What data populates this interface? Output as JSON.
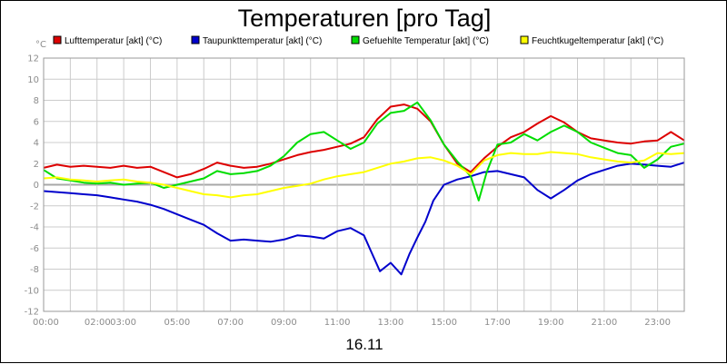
{
  "chart_data": {
    "type": "line",
    "title": "Temperaturen [pro Tag]",
    "unit_label": "°C",
    "date_label": "16.11",
    "ylim": [
      -12,
      12
    ],
    "yticks": [
      12,
      10,
      8,
      6,
      4,
      2,
      0,
      -2,
      -4,
      -6,
      -8,
      -10,
      -12
    ],
    "xlim": [
      0,
      24
    ],
    "xtick_labels": [
      {
        "x": 0,
        "label": "00:00"
      },
      {
        "x": 2,
        "label": "02:00"
      },
      {
        "x": 3,
        "label": "03:00"
      },
      {
        "x": 5,
        "label": "05:00"
      },
      {
        "x": 7,
        "label": "07:00"
      },
      {
        "x": 9,
        "label": "09:00"
      },
      {
        "x": 11,
        "label": "11:00"
      },
      {
        "x": 13,
        "label": "13:00"
      },
      {
        "x": 15,
        "label": "15:00"
      },
      {
        "x": 17,
        "label": "17:00"
      },
      {
        "x": 19,
        "label": "19:00"
      },
      {
        "x": 21,
        "label": "21:00"
      },
      {
        "x": 23,
        "label": "23:00"
      }
    ],
    "grid": true,
    "legend_position": "top",
    "x_unit": "hour of day",
    "series": [
      {
        "name": "Lufttemperatur [akt] (°C)",
        "color": "#dd0000",
        "points": [
          [
            0,
            1.6
          ],
          [
            0.5,
            1.9
          ],
          [
            1,
            1.7
          ],
          [
            1.5,
            1.8
          ],
          [
            2,
            1.7
          ],
          [
            2.5,
            1.6
          ],
          [
            3,
            1.8
          ],
          [
            3.5,
            1.6
          ],
          [
            4,
            1.7
          ],
          [
            4.5,
            1.2
          ],
          [
            5,
            0.7
          ],
          [
            5.5,
            1.0
          ],
          [
            6,
            1.5
          ],
          [
            6.5,
            2.1
          ],
          [
            7,
            1.8
          ],
          [
            7.5,
            1.6
          ],
          [
            8,
            1.7
          ],
          [
            8.5,
            2.0
          ],
          [
            9,
            2.4
          ],
          [
            9.5,
            2.8
          ],
          [
            10,
            3.1
          ],
          [
            10.5,
            3.3
          ],
          [
            11,
            3.6
          ],
          [
            11.5,
            3.9
          ],
          [
            12,
            4.5
          ],
          [
            12.5,
            6.2
          ],
          [
            13,
            7.4
          ],
          [
            13.5,
            7.6
          ],
          [
            14,
            7.2
          ],
          [
            14.5,
            6.0
          ],
          [
            15,
            3.8
          ],
          [
            15.5,
            2.0
          ],
          [
            16,
            1.2
          ],
          [
            16.5,
            2.5
          ],
          [
            17,
            3.6
          ],
          [
            17.5,
            4.5
          ],
          [
            18,
            5.0
          ],
          [
            18.5,
            5.8
          ],
          [
            19,
            6.5
          ],
          [
            19.5,
            5.9
          ],
          [
            20,
            5.0
          ],
          [
            20.5,
            4.4
          ],
          [
            21,
            4.2
          ],
          [
            21.5,
            4.0
          ],
          [
            22,
            3.9
          ],
          [
            22.5,
            4.1
          ],
          [
            23,
            4.2
          ],
          [
            23.5,
            5.0
          ],
          [
            24,
            4.2
          ]
        ]
      },
      {
        "name": "Taupunkttemperatur [akt] (°C)",
        "color": "#0000cc",
        "points": [
          [
            0,
            -0.6
          ],
          [
            0.5,
            -0.7
          ],
          [
            1,
            -0.8
          ],
          [
            1.5,
            -0.9
          ],
          [
            2,
            -1.0
          ],
          [
            2.5,
            -1.2
          ],
          [
            3,
            -1.4
          ],
          [
            3.5,
            -1.6
          ],
          [
            4,
            -1.9
          ],
          [
            4.5,
            -2.3
          ],
          [
            5,
            -2.8
          ],
          [
            5.5,
            -3.3
          ],
          [
            6,
            -3.8
          ],
          [
            6.5,
            -4.6
          ],
          [
            7,
            -5.3
          ],
          [
            7.5,
            -5.2
          ],
          [
            8,
            -5.3
          ],
          [
            8.5,
            -5.4
          ],
          [
            9,
            -5.2
          ],
          [
            9.5,
            -4.8
          ],
          [
            10,
            -4.9
          ],
          [
            10.5,
            -5.1
          ],
          [
            11,
            -4.4
          ],
          [
            11.5,
            -4.1
          ],
          [
            12,
            -4.8
          ],
          [
            12.3,
            -6.5
          ],
          [
            12.6,
            -8.2
          ],
          [
            13,
            -7.4
          ],
          [
            13.4,
            -8.5
          ],
          [
            13.7,
            -6.6
          ],
          [
            14,
            -5.0
          ],
          [
            14.3,
            -3.5
          ],
          [
            14.6,
            -1.5
          ],
          [
            15,
            0.0
          ],
          [
            15.5,
            0.5
          ],
          [
            16,
            0.8
          ],
          [
            16.5,
            1.2
          ],
          [
            17,
            1.3
          ],
          [
            17.5,
            1.0
          ],
          [
            18,
            0.7
          ],
          [
            18.5,
            -0.5
          ],
          [
            19,
            -1.3
          ],
          [
            19.5,
            -0.5
          ],
          [
            20,
            0.4
          ],
          [
            20.5,
            1.0
          ],
          [
            21,
            1.4
          ],
          [
            21.5,
            1.8
          ],
          [
            22,
            2.0
          ],
          [
            22.5,
            1.9
          ],
          [
            23,
            1.8
          ],
          [
            23.5,
            1.7
          ],
          [
            24,
            2.1
          ]
        ]
      },
      {
        "name": "Gefuehlte Temperatur [akt] (°C)",
        "color": "#00dd00",
        "points": [
          [
            0,
            1.4
          ],
          [
            0.5,
            0.6
          ],
          [
            1,
            0.4
          ],
          [
            1.5,
            0.2
          ],
          [
            2,
            0.1
          ],
          [
            2.5,
            0.2
          ],
          [
            3,
            0.0
          ],
          [
            3.5,
            0.1
          ],
          [
            4,
            0.2
          ],
          [
            4.5,
            -0.3
          ],
          [
            5,
            0.0
          ],
          [
            5.5,
            0.3
          ],
          [
            6,
            0.6
          ],
          [
            6.5,
            1.3
          ],
          [
            7,
            1.0
          ],
          [
            7.5,
            1.1
          ],
          [
            8,
            1.3
          ],
          [
            8.5,
            1.8
          ],
          [
            9,
            2.7
          ],
          [
            9.5,
            4.0
          ],
          [
            10,
            4.8
          ],
          [
            10.5,
            5.0
          ],
          [
            11,
            4.2
          ],
          [
            11.5,
            3.4
          ],
          [
            12,
            4.0
          ],
          [
            12.5,
            5.8
          ],
          [
            13,
            6.8
          ],
          [
            13.5,
            7.0
          ],
          [
            14,
            7.8
          ],
          [
            14.5,
            6.1
          ],
          [
            15,
            3.8
          ],
          [
            15.5,
            2.2
          ],
          [
            16,
            0.8
          ],
          [
            16.3,
            -1.5
          ],
          [
            16.6,
            1.2
          ],
          [
            17,
            3.8
          ],
          [
            17.5,
            4.0
          ],
          [
            18,
            4.8
          ],
          [
            18.5,
            4.2
          ],
          [
            19,
            5.0
          ],
          [
            19.5,
            5.6
          ],
          [
            20,
            5.0
          ],
          [
            20.5,
            4.0
          ],
          [
            21,
            3.5
          ],
          [
            21.5,
            3.0
          ],
          [
            22,
            2.8
          ],
          [
            22.5,
            1.6
          ],
          [
            23,
            2.4
          ],
          [
            23.5,
            3.6
          ],
          [
            24,
            3.9
          ]
        ]
      },
      {
        "name": "Feuchtkugeltemperatur [akt] (°C)",
        "color": "#ffff00",
        "points": [
          [
            0,
            0.6
          ],
          [
            0.5,
            0.7
          ],
          [
            1,
            0.5
          ],
          [
            1.5,
            0.4
          ],
          [
            2,
            0.3
          ],
          [
            2.5,
            0.4
          ],
          [
            3,
            0.5
          ],
          [
            3.5,
            0.3
          ],
          [
            4,
            0.2
          ],
          [
            4.5,
            0.0
          ],
          [
            5,
            -0.3
          ],
          [
            5.5,
            -0.6
          ],
          [
            6,
            -0.9
          ],
          [
            6.5,
            -1.0
          ],
          [
            7,
            -1.2
          ],
          [
            7.5,
            -1.0
          ],
          [
            8,
            -0.9
          ],
          [
            8.5,
            -0.6
          ],
          [
            9,
            -0.3
          ],
          [
            9.5,
            -0.1
          ],
          [
            10,
            0.1
          ],
          [
            10.5,
            0.5
          ],
          [
            11,
            0.8
          ],
          [
            11.5,
            1.0
          ],
          [
            12,
            1.2
          ],
          [
            12.5,
            1.6
          ],
          [
            13,
            2.0
          ],
          [
            13.5,
            2.2
          ],
          [
            14,
            2.5
          ],
          [
            14.5,
            2.6
          ],
          [
            15,
            2.3
          ],
          [
            15.5,
            1.8
          ],
          [
            16,
            1.0
          ],
          [
            16.5,
            2.3
          ],
          [
            17,
            2.8
          ],
          [
            17.5,
            3.0
          ],
          [
            18,
            2.9
          ],
          [
            18.5,
            2.9
          ],
          [
            19,
            3.1
          ],
          [
            19.5,
            3.0
          ],
          [
            20,
            2.9
          ],
          [
            20.5,
            2.6
          ],
          [
            21,
            2.4
          ],
          [
            21.5,
            2.2
          ],
          [
            22,
            2.1
          ],
          [
            22.5,
            2.3
          ],
          [
            23,
            3.0
          ],
          [
            23.5,
            2.9
          ],
          [
            24,
            3.0
          ]
        ]
      }
    ]
  }
}
